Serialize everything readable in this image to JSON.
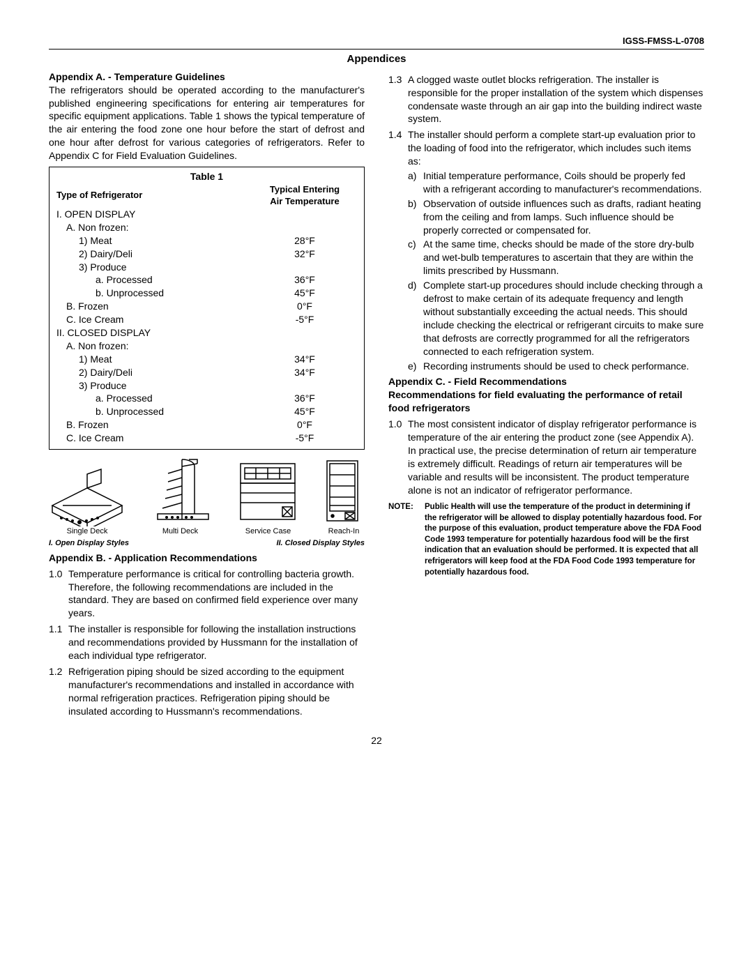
{
  "doc_id": "IGSS-FMSS-L-0708",
  "page_title": "Appendices",
  "appA": {
    "head": "Appendix A. - Temperature Guidelines",
    "para": "The refrigerators should be operated according to the manufacturer's published engineering specifications for entering air temperatures for specific equipment applications. Table 1 shows the typical temperature of the air entering the food zone one hour before the start of defrost and one hour after defrost for various categories of refrigerators. Refer to Appendix C for Field Evaluation Guidelines."
  },
  "table": {
    "title": "Table 1",
    "h1": "Type of Refrigerator",
    "h2a": "Typical Entering",
    "h2b": "Air Temperature",
    "rows": [
      {
        "l": "I.  OPEN DISPLAY",
        "r": "",
        "cls": ""
      },
      {
        "l": "A.  Non frozen:",
        "r": "",
        "cls": "lvlA"
      },
      {
        "l": "1)  Meat",
        "r": "28°F",
        "cls": "lvl1"
      },
      {
        "l": "2)  Dairy/Deli",
        "r": "32°F",
        "cls": "lvl1"
      },
      {
        "l": "3)  Produce",
        "r": "",
        "cls": "lvl1"
      },
      {
        "l": "a. Processed",
        "r": "36°F",
        "cls": "lvla"
      },
      {
        "l": "b. Unprocessed",
        "r": "45°F",
        "cls": "lvla"
      },
      {
        "l": "B.  Frozen",
        "r": "0°F",
        "cls": "lvlA"
      },
      {
        "l": "C.  Ice Cream",
        "r": "-5°F",
        "cls": "lvlA"
      },
      {
        "l": "II. CLOSED DISPLAY",
        "r": "",
        "cls": ""
      },
      {
        "l": "A.  Non frozen:",
        "r": "",
        "cls": "lvlA"
      },
      {
        "l": "1)  Meat",
        "r": "34°F",
        "cls": "lvl1"
      },
      {
        "l": "2)  Dairy/Deli",
        "r": "34°F",
        "cls": "lvl1"
      },
      {
        "l": "3)  Produce",
        "r": "",
        "cls": "lvl1"
      },
      {
        "l": "a. Processed",
        "r": "36°F",
        "cls": "lvla"
      },
      {
        "l": "b. Unprocessed",
        "r": "45°F",
        "cls": "lvla"
      },
      {
        "l": "B.  Frozen",
        "r": "0°F",
        "cls": "lvlA"
      },
      {
        "l": "C.  Ice Cream",
        "r": "-5°F",
        "cls": "lvlA"
      }
    ]
  },
  "diagrams": {
    "d1": "Single Deck",
    "d2": "Multi Deck",
    "d3": "Service Case",
    "d4": "Reach-In",
    "lab1": "I. Open Display Styles",
    "lab2": "II. Closed Display Styles"
  },
  "appB": {
    "head": "Appendix B. - Application Recommendations",
    "items": [
      {
        "n": "1.0",
        "t": "Temperature performance is critical for controlling bacteria growth. Therefore, the following recommendations are included in the standard. They are based on confirmed field experience over many years."
      },
      {
        "n": "1.1",
        "t": "The installer is responsible for following the installation instructions and recommendations provided by Hussmann for the installation of each individual type refrigerator."
      },
      {
        "n": "1.2",
        "t": "Refrigeration piping should be sized according to the equipment manufacturer's recommendations and installed in accordance with normal refrigeration practices. Refrigeration piping should be insulated according to Hussmann's recommendations."
      }
    ]
  },
  "right": {
    "items": [
      {
        "n": "1.3",
        "t": "A clogged waste outlet blocks refrigeration. The installer is responsible for the proper installation of the system which dispenses condensate waste through an air gap into the building indirect waste system."
      },
      {
        "n": "1.4",
        "t": "The installer should perform a complete start-up evaluation prior to the loading of food into the refrigerator, which includes such items as:"
      }
    ],
    "subs": [
      {
        "n": "a)",
        "t": "Initial temperature performance, Coils should be properly fed with a refrigerant according to manufacturer's recommendations."
      },
      {
        "n": "b)",
        "t": "Observation of outside influences such as drafts, radiant heating from the ceiling and from lamps. Such influence should be properly corrected or compensated for."
      },
      {
        "n": "c)",
        "t": "At the same time, checks should be made of the store dry-bulb and wet-bulb temperatures to ascertain that they are within the limits prescribed by Hussmann."
      },
      {
        "n": "d)",
        "t": "Complete start-up procedures should include checking through a defrost to make certain of its adequate frequency and length without substantially exceeding the actual needs. This should include checking the electrical or refrigerant circuits to make sure that defrosts are correctly programmed for all the refrigerators connected to each refrigeration system."
      },
      {
        "n": "e)",
        "t": "Recording instruments should be used to check performance."
      }
    ]
  },
  "appC": {
    "head1": "Appendix C. - Field Recommendations",
    "head2": "Recommendations for field evaluating the performance of retail food refrigerators",
    "item": {
      "n": "1.0",
      "t": "The most consistent indicator of display refrigerator performance is temperature of the air entering the product zone (see Appendix A). In practical use, the precise determination of return air temperature is extremely difficult. Readings of return air temperatures will be variable and results will be inconsistent. The product temperature alone is not an indicator of refrigerator performance."
    }
  },
  "note": {
    "k": "NOTE:",
    "t": "Public Health will use the temperature of the product in determining if the refrigerator will be allowed to display potentially hazardous food. For the purpose of this evaluation, product temperature above the FDA Food Code 1993 temperature for potentially hazardous food will be the first indication that an evaluation should be performed. It is expected that all refrigerators will keep food at the FDA Food Code 1993 temperature for potentially hazardous food."
  },
  "pagenum": "22"
}
